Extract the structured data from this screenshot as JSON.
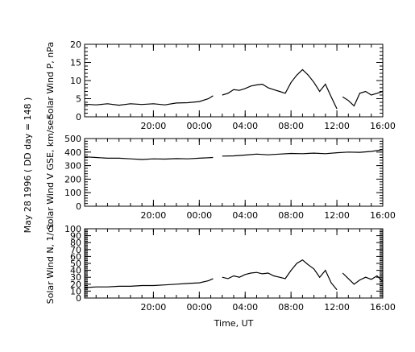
{
  "figure": {
    "side_title": "May 28 1996   ( DD day = 148 )",
    "xlabel": "Time, UT"
  },
  "colors": {
    "line": "#000000",
    "background": "#ffffff"
  },
  "chart_data": [
    {
      "type": "line",
      "ylabel": "Solar Wind P, nPa",
      "ylim": [
        0,
        20
      ],
      "yticks": [
        0,
        5,
        10,
        15,
        20
      ],
      "xlim": [
        14,
        40
      ],
      "xtick_values": [
        20,
        24,
        28,
        32,
        36,
        40
      ],
      "xtick_labels": [
        "20:00",
        "00:00",
        "04:00",
        "08:00",
        "12:00",
        "16:00"
      ],
      "show_xtick_labels": true,
      "series": [
        {
          "segments": [
            [
              [
                14.0,
                3.5
              ],
              [
                15.0,
                3.3
              ],
              [
                16.0,
                3.6
              ],
              [
                17.0,
                3.2
              ],
              [
                18.0,
                3.6
              ],
              [
                19.0,
                3.4
              ],
              [
                20.0,
                3.6
              ],
              [
                21.0,
                3.3
              ],
              [
                22.0,
                3.8
              ],
              [
                23.0,
                3.9
              ],
              [
                24.0,
                4.2
              ],
              [
                24.8,
                5.0
              ],
              [
                25.2,
                5.8
              ]
            ],
            [
              [
                26.0,
                6.0
              ],
              [
                26.5,
                6.5
              ],
              [
                27.0,
                7.5
              ],
              [
                27.5,
                7.3
              ],
              [
                28.0,
                7.8
              ],
              [
                28.5,
                8.5
              ],
              [
                29.0,
                8.8
              ],
              [
                29.5,
                9.0
              ],
              [
                30.0,
                8.0
              ],
              [
                30.5,
                7.5
              ],
              [
                31.0,
                7.0
              ],
              [
                31.5,
                6.5
              ],
              [
                32.0,
                9.5
              ],
              [
                32.5,
                11.5
              ],
              [
                33.0,
                13.0
              ],
              [
                33.5,
                11.5
              ],
              [
                34.0,
                9.5
              ],
              [
                34.5,
                7.0
              ],
              [
                35.0,
                9.0
              ],
              [
                35.5,
                5.5
              ],
              [
                36.0,
                2.2
              ]
            ],
            [
              [
                36.5,
                5.5
              ],
              [
                37.0,
                4.5
              ],
              [
                37.5,
                3.0
              ],
              [
                38.0,
                6.5
              ],
              [
                38.5,
                7.0
              ],
              [
                39.0,
                6.0
              ],
              [
                39.5,
                6.5
              ],
              [
                40.0,
                7.0
              ]
            ]
          ]
        }
      ]
    },
    {
      "type": "line",
      "ylabel": "Solar Wind V GSE, km/sec",
      "ylim": [
        0,
        500
      ],
      "yticks": [
        0,
        100,
        200,
        300,
        400,
        500
      ],
      "xlim": [
        14,
        40
      ],
      "xtick_values": [
        20,
        24,
        28,
        32,
        36,
        40
      ],
      "xtick_labels": [
        "20:00",
        "00:00",
        "04:00",
        "08:00",
        "12:00",
        "16:00"
      ],
      "show_xtick_labels": true,
      "series": [
        {
          "segments": [
            [
              [
                14.0,
                365
              ],
              [
                15.0,
                360
              ],
              [
                16.0,
                355
              ],
              [
                17.0,
                355
              ],
              [
                18.0,
                350
              ],
              [
                19.0,
                345
              ],
              [
                20.0,
                350
              ],
              [
                21.0,
                348
              ],
              [
                22.0,
                352
              ],
              [
                23.0,
                350
              ],
              [
                24.0,
                355
              ],
              [
                25.2,
                360
              ]
            ],
            [
              [
                26.0,
                370
              ],
              [
                27.0,
                372
              ],
              [
                28.0,
                378
              ],
              [
                29.0,
                385
              ],
              [
                30.0,
                380
              ],
              [
                31.0,
                385
              ],
              [
                32.0,
                390
              ],
              [
                33.0,
                388
              ],
              [
                34.0,
                392
              ],
              [
                35.0,
                388
              ],
              [
                36.0,
                395
              ],
              [
                37.0,
                400
              ],
              [
                38.0,
                398
              ],
              [
                39.0,
                405
              ],
              [
                40.0,
                418
              ]
            ]
          ]
        }
      ]
    },
    {
      "type": "line",
      "ylabel": "Solar Wind N, 1/cc",
      "ylim": [
        0,
        100
      ],
      "yticks": [
        0,
        10,
        20,
        30,
        40,
        50,
        60,
        70,
        80,
        90,
        100
      ],
      "xlim": [
        14,
        40
      ],
      "xtick_values": [
        20,
        24,
        28,
        32,
        36,
        40
      ],
      "xtick_labels": [
        "20:00",
        "00:00",
        "04:00",
        "08:00",
        "12:00",
        "16:00"
      ],
      "show_xtick_labels": true,
      "series": [
        {
          "segments": [
            [
              [
                14.0,
                15
              ],
              [
                15.0,
                16
              ],
              [
                16.0,
                16
              ],
              [
                17.0,
                17
              ],
              [
                18.0,
                17
              ],
              [
                19.0,
                18
              ],
              [
                20.0,
                18
              ],
              [
                21.0,
                19
              ],
              [
                22.0,
                20
              ],
              [
                23.0,
                21
              ],
              [
                24.0,
                22
              ],
              [
                24.8,
                25
              ],
              [
                25.2,
                28
              ]
            ],
            [
              [
                26.0,
                30
              ],
              [
                26.5,
                28
              ],
              [
                27.0,
                32
              ],
              [
                27.5,
                30
              ],
              [
                28.0,
                34
              ],
              [
                28.5,
                36
              ],
              [
                29.0,
                37
              ],
              [
                29.5,
                35
              ],
              [
                30.0,
                36
              ],
              [
                30.5,
                32
              ],
              [
                31.0,
                30
              ],
              [
                31.5,
                28
              ],
              [
                32.0,
                40
              ],
              [
                32.5,
                50
              ],
              [
                33.0,
                55
              ],
              [
                33.5,
                48
              ],
              [
                34.0,
                42
              ],
              [
                34.5,
                30
              ],
              [
                35.0,
                40
              ],
              [
                35.5,
                22
              ],
              [
                36.0,
                12
              ]
            ],
            [
              [
                36.5,
                36
              ],
              [
                37.0,
                28
              ],
              [
                37.5,
                20
              ],
              [
                38.0,
                26
              ],
              [
                38.5,
                30
              ],
              [
                39.0,
                27
              ],
              [
                39.5,
                32
              ],
              [
                40.0,
                24
              ]
            ]
          ]
        }
      ]
    }
  ]
}
